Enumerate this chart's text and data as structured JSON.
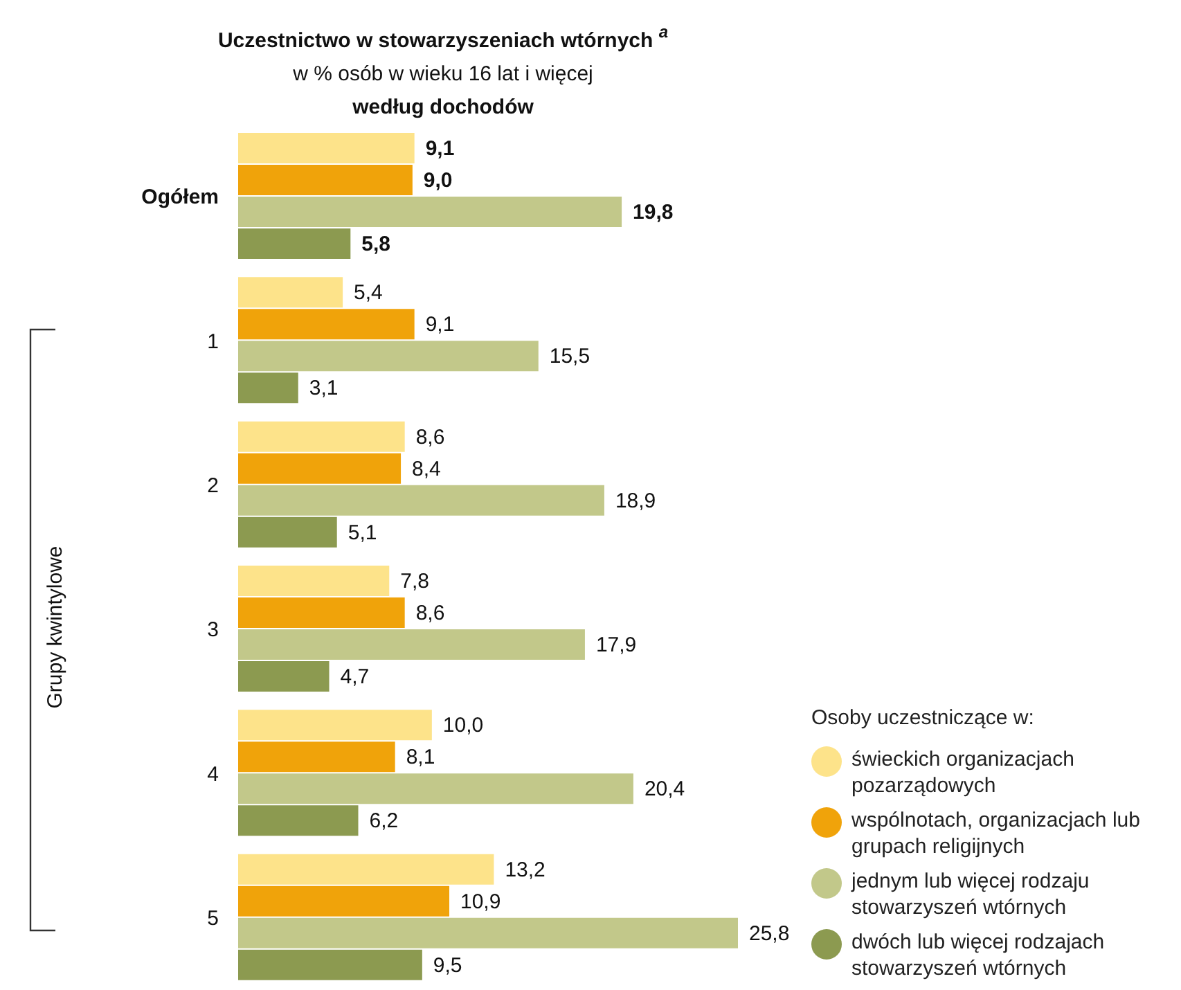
{
  "chart_data": {
    "type": "bar",
    "orientation": "horizontal",
    "title": "Uczestnictwo w stowarzyszeniach wtórnych $^{a}$",
    "subtitle": "w % osób w wieku 16 lat i więcej\nwedług dochodów",
    "ylabel": "Grupy kwintylowe",
    "legend_title": "Osoby uczestniczące w:",
    "categories": [
      "Ogółem",
      "1",
      "2",
      "3",
      "4",
      "5"
    ],
    "series": [
      {
        "name": "świeckich organizacjach pozarządowych",
        "color": "#fde38a",
        "values": [
          9.1,
          5.4,
          8.6,
          7.8,
          10.0,
          13.2
        ],
        "value_labels": [
          "9,1",
          "5,4",
          "8,6",
          "7,8",
          "10,0",
          "13,2"
        ]
      },
      {
        "name": "wspólnotach, organizacjach lub grupach religijnych",
        "color": "#f0a30a",
        "values": [
          9.0,
          9.1,
          8.4,
          8.6,
          8.1,
          10.9
        ],
        "value_labels": [
          "9,0",
          "9,1",
          "8,4",
          "8,6",
          "8,1",
          "10,9"
        ]
      },
      {
        "name": "jednym lub więcej rodzaju stowarzyszeń wtórnych",
        "color": "#c2c88a",
        "values": [
          19.8,
          15.5,
          18.9,
          17.9,
          20.4,
          25.8
        ],
        "value_labels": [
          "19,8",
          "15,5",
          "18,9",
          "17,9",
          "20,4",
          "25,8"
        ]
      },
      {
        "name": "dwóch lub więcej rodzajach stowarzyszeń wtórnych",
        "color": "#8c9a50",
        "values": [
          5.8,
          3.1,
          5.1,
          4.7,
          6.2,
          9.5
        ],
        "value_labels": [
          "5,8",
          "3,1",
          "5,1",
          "4,7",
          "6,2",
          "9,5"
        ]
      }
    ],
    "legend": "bottom right"
  }
}
